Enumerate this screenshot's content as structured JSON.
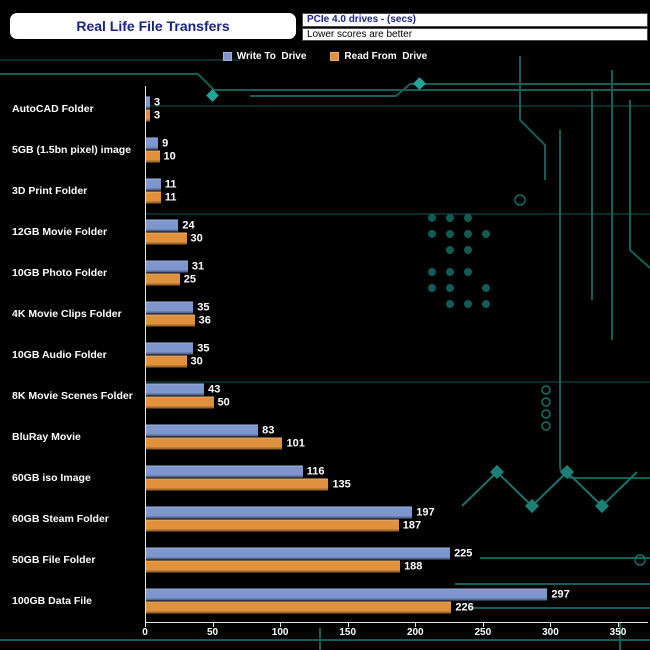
{
  "header": {
    "title": "Real Life File Transfers",
    "subtitle": "PCIe 4.0 drives - (secs)",
    "note": "Lower scores are better"
  },
  "legend": {
    "write_label": "Write To  Drive",
    "read_label": "Read From  Drive"
  },
  "colors": {
    "write_bar": "#7e96ce",
    "read_bar": "#e0913e",
    "background": "#000000",
    "circuit_teal": "#146058",
    "axis": "#e8e8e8",
    "title_text": "#1b2383"
  },
  "chart_data": {
    "type": "bar",
    "orientation": "horizontal",
    "title": "Real Life File Transfers",
    "subtitle": "PCIe 4.0 drives - (secs)",
    "note": "Lower scores are better",
    "categories": [
      "AutoCAD Folder",
      "5GB (1.5bn pixel) image",
      "3D Print Folder",
      "12GB Movie Folder",
      "10GB Photo Folder",
      "4K Movie Clips Folder",
      "10GB Audio Folder",
      "8K Movie Scenes Folder",
      "BluRay Movie",
      "60GB iso Image",
      "60GB Steam Folder",
      "50GB File Folder",
      "100GB Data File"
    ],
    "series": [
      {
        "name": "Write To Drive",
        "color": "#7e96ce",
        "values": [
          3,
          9,
          11,
          24,
          31,
          35,
          35,
          43,
          83,
          116,
          197,
          225,
          297
        ]
      },
      {
        "name": "Read From Drive",
        "color": "#e0913e",
        "values": [
          3,
          10,
          11,
          30,
          25,
          36,
          30,
          50,
          101,
          135,
          187,
          188,
          226
        ]
      }
    ],
    "xlim": [
      0,
      350
    ],
    "xticks": [
      0,
      50,
      100,
      150,
      200,
      250,
      300,
      350
    ],
    "legend_position": "top",
    "grid": false,
    "value_labels": true
  }
}
